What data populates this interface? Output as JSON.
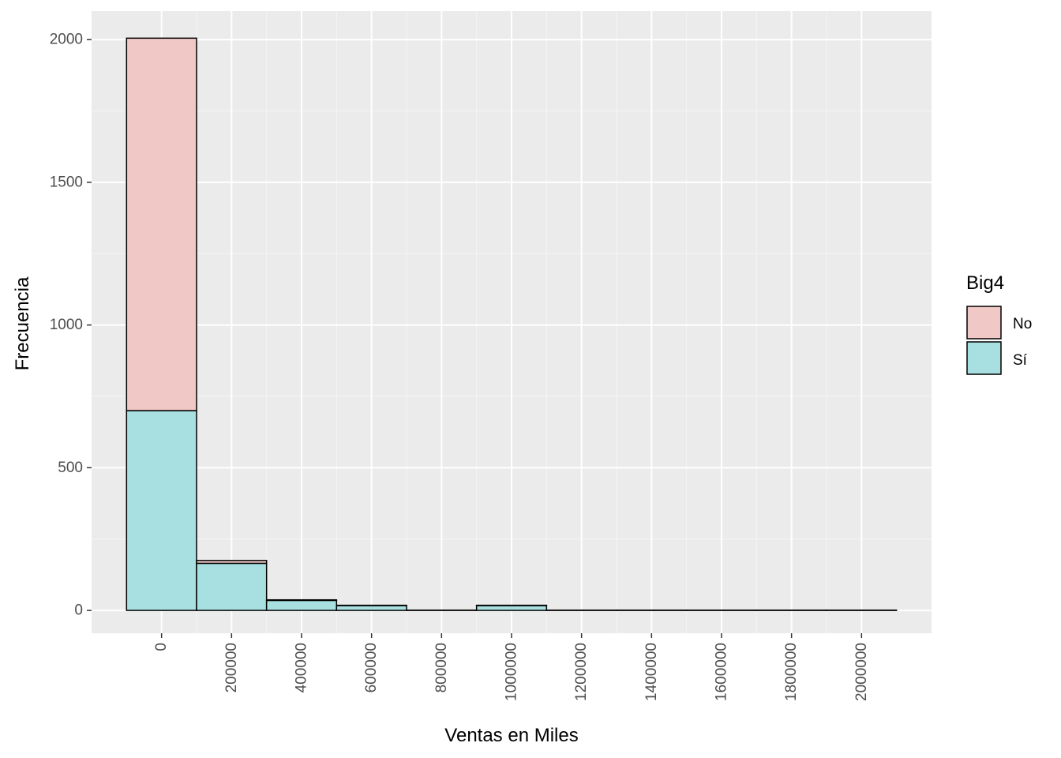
{
  "chart_data": {
    "type": "bar",
    "subtype": "stacked-histogram",
    "title": "",
    "xlabel": "Ventas en Miles",
    "ylabel": "Frecuencia",
    "xlim": [
      -200000,
      2200000
    ],
    "ylim": [
      -80,
      2100
    ],
    "x_ticks": [
      0,
      200000,
      400000,
      600000,
      800000,
      1000000,
      1200000,
      1400000,
      1600000,
      1800000,
      2000000
    ],
    "x_tick_labels": [
      "0",
      "200000",
      "400000",
      "600000",
      "800000",
      "1000000",
      "1200000",
      "1400000",
      "1600000",
      "1800000",
      "2000000"
    ],
    "y_ticks": [
      0,
      500,
      1000,
      1500,
      2000
    ],
    "y_tick_labels": [
      "0",
      "500",
      "1000",
      "1500",
      "2000"
    ],
    "bin_width": 200000,
    "bin_centers": [
      0,
      200000,
      400000,
      600000,
      800000,
      1000000,
      1200000,
      1400000,
      1600000,
      1800000,
      2000000
    ],
    "grid": true,
    "legend": {
      "title": "Big4",
      "position": "right",
      "entries": [
        {
          "label": "No",
          "color": "#F0C9C7"
        },
        {
          "label": "Sí",
          "color": "#A8E0E2"
        }
      ]
    },
    "series": [
      {
        "name": "No",
        "color": "#F0C9C7",
        "values": [
          1305,
          10,
          2,
          1,
          0,
          1,
          0,
          0,
          0,
          0,
          0
        ]
      },
      {
        "name": "Sí",
        "color": "#A8E0E2",
        "values": [
          700,
          165,
          35,
          17,
          1,
          17,
          1,
          1,
          1,
          1,
          1
        ]
      }
    ],
    "colors": {
      "panel_background": "#EBEBEB",
      "grid_major": "#FFFFFF",
      "grid_minor": "#F5F5F5",
      "bar_outline": "#000000"
    }
  }
}
